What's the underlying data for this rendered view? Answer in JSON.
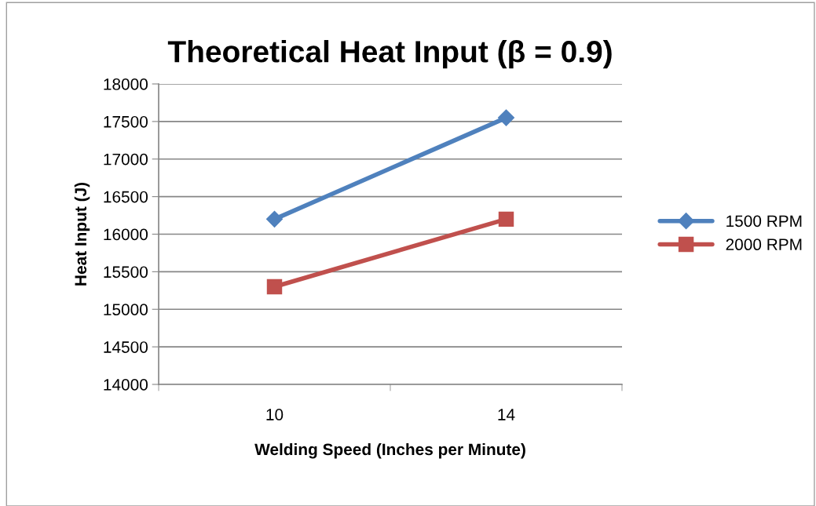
{
  "chart_data": {
    "type": "line",
    "title": "Theoretical Heat Input (β = 0.9)",
    "xlabel": "Welding Speed (Inches per Minute)",
    "ylabel": "Heat Input (J)",
    "categories": [
      "10",
      "14"
    ],
    "series": [
      {
        "name": "1500 RPM",
        "color": "#4f81bd",
        "marker": "diamond",
        "values": [
          16200,
          17550
        ]
      },
      {
        "name": "2000 RPM",
        "color": "#c0504d",
        "marker": "square",
        "values": [
          15300,
          16200
        ]
      }
    ],
    "ylim": [
      14000,
      18000
    ],
    "yticks": [
      14000,
      14500,
      15000,
      15500,
      16000,
      16500,
      17000,
      17500,
      18000
    ],
    "grid": "y",
    "legend": "right",
    "line_style": "solid"
  }
}
